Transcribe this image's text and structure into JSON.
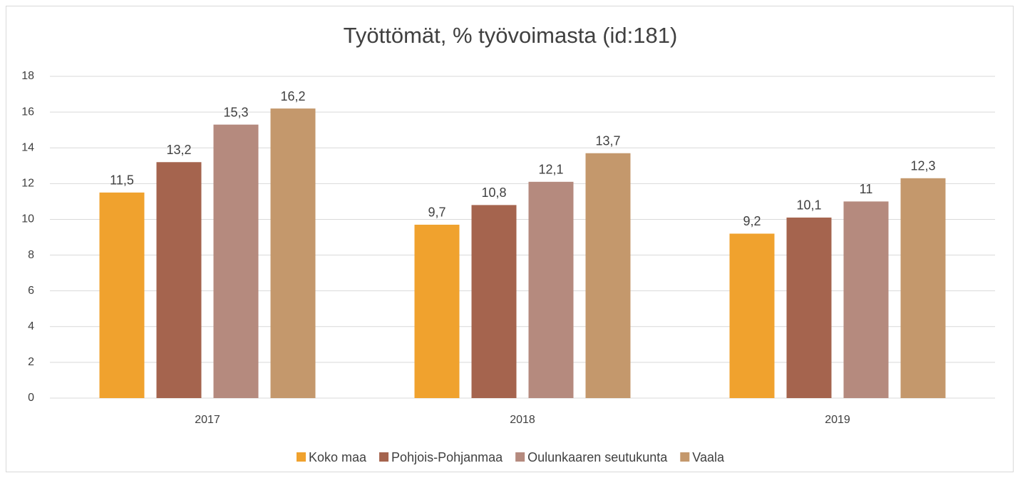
{
  "chart_data": {
    "type": "bar",
    "title": "Työttömät, % työvoimasta (id:181)",
    "categories": [
      "2017",
      "2018",
      "2019"
    ],
    "series": [
      {
        "name": "Koko maa",
        "color": "#f0a22e",
        "values": [
          11.5,
          9.7,
          9.2
        ],
        "value_labels": [
          "11,5",
          "9,7",
          "9,2"
        ]
      },
      {
        "name": "Pohjois-Pohjanmaa",
        "color": "#a5644e",
        "values": [
          13.2,
          10.8,
          10.1
        ],
        "value_labels": [
          "13,2",
          "10,8",
          "10,1"
        ]
      },
      {
        "name": "Oulunkaaren seutukunta",
        "color": "#b58a7e",
        "values": [
          15.3,
          12.1,
          11
        ],
        "value_labels": [
          "15,3",
          "12,1",
          "11"
        ]
      },
      {
        "name": "Vaala",
        "color": "#c4986c",
        "values": [
          16.2,
          13.7,
          12.3
        ],
        "value_labels": [
          "16,2",
          "13,7",
          "12,3"
        ]
      }
    ],
    "ylim": [
      0,
      18
    ],
    "yticks": [
      0,
      2,
      4,
      6,
      8,
      10,
      12,
      14,
      16,
      18
    ],
    "grid": true,
    "legend": "bottom"
  }
}
